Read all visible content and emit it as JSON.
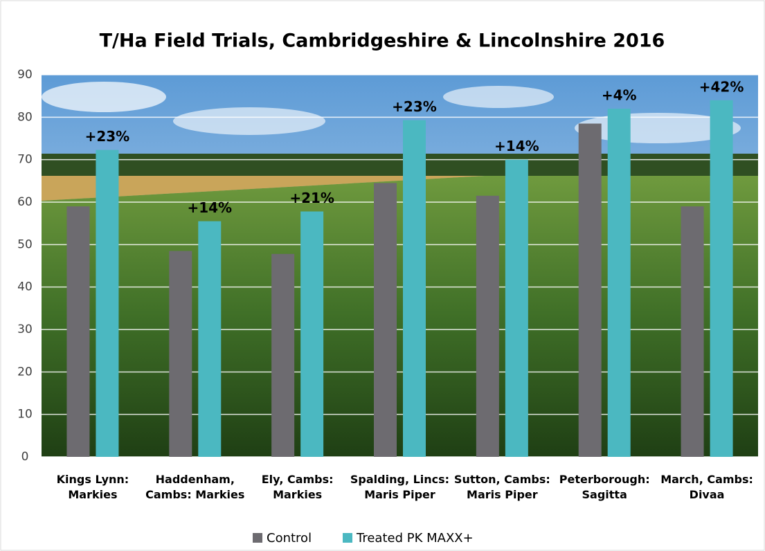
{
  "chart_data": {
    "type": "bar",
    "title": "T/Ha Field Trials, Cambridgeshire & Lincolnshire 2016",
    "categories": [
      "Kings Lynn: Markies",
      "Haddenham, Cambs: Markies",
      "Ely, Cambs: Markies",
      "Spalding, Lincs: Maris Piper",
      "Sutton, Cambs: Maris Piper",
      "Peterborough: Sagitta",
      "March, Cambs: Divaa"
    ],
    "series": [
      {
        "name": "Control",
        "color": "#6d6b70",
        "values": [
          59,
          48.5,
          47.8,
          64.5,
          61.5,
          78.5,
          59
        ]
      },
      {
        "name": "Treated PK MAXX+",
        "color": "#4bb8c1",
        "values": [
          72.3,
          55.5,
          57.8,
          79.3,
          70,
          82,
          84
        ]
      }
    ],
    "annotations": [
      "+23%",
      "+14%",
      "+21%",
      "+23%",
      "+14%",
      "+4%",
      "+42%"
    ],
    "ylim": [
      0,
      90
    ],
    "yticks": [
      0,
      10,
      20,
      30,
      40,
      50,
      60,
      70,
      80,
      90
    ],
    "grid": true,
    "legend": "bottom"
  }
}
